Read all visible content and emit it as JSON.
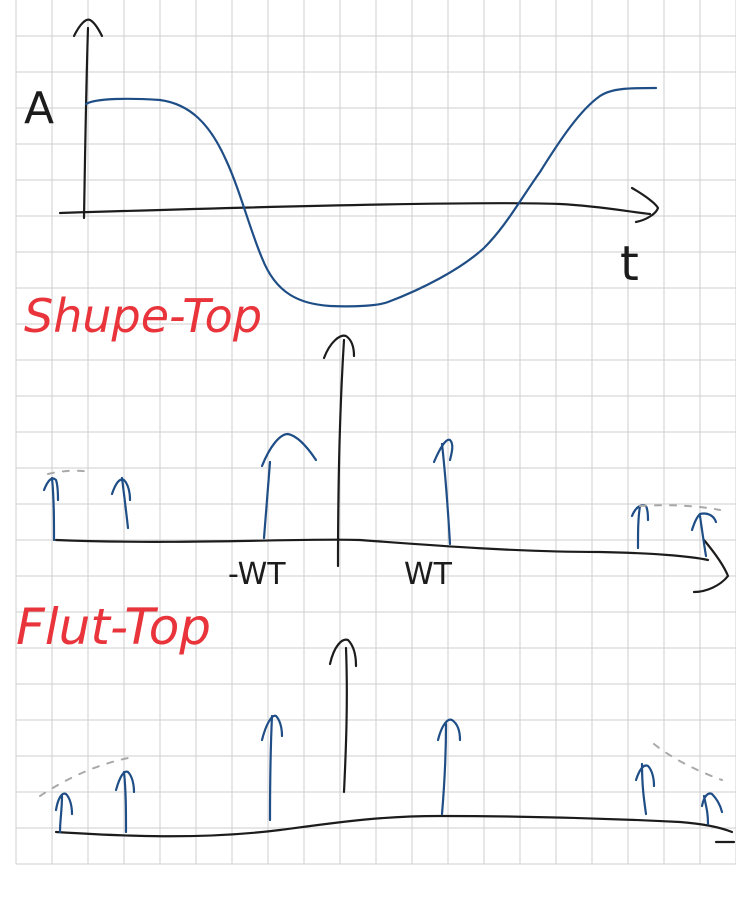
{
  "labels": {
    "amplitude": "A",
    "time_axis": "t",
    "shape_top": "Shupe-Top",
    "flat_top": "Flut-Top",
    "neg_wt": "-WT",
    "pos_wt": "WT"
  },
  "colors": {
    "ink": "#1c1c1c",
    "blue": "#1f4e86",
    "red": "#e8343a",
    "grid": "#cfcfcf",
    "dashed": "#a9a9a9"
  }
}
